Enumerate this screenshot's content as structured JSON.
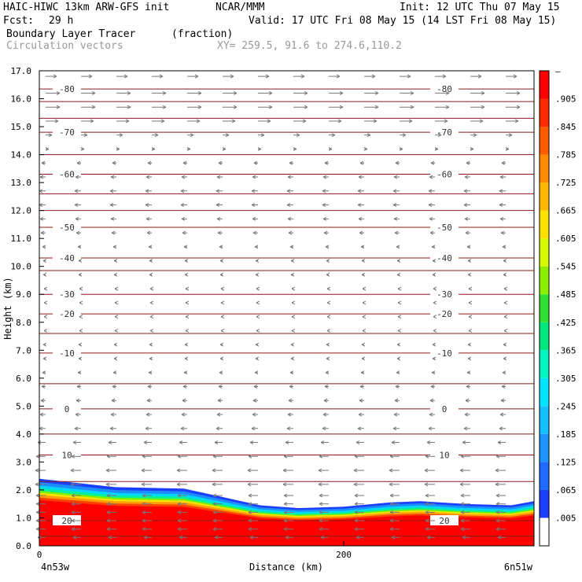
{
  "header": {
    "model": "HAIC-HIWC 13km ARW-GFS init",
    "org": "NCAR/MMM",
    "init": "Init: 12 UTC Thu 07 May 15",
    "fcst_label": "Fcst:",
    "fcst_value": "29 h",
    "valid": "Valid: 17 UTC Fri 08 May 15 (14 LST Fri 08 May 15)",
    "field": "Boundary Layer Tracer",
    "field_units": "(fraction)",
    "vectors": "Circulation vectors",
    "xy": "XY= 259.5, 91.6 to 274.6,110.2"
  },
  "chart_data": {
    "type": "heatmap",
    "ylabel": "Height (km)",
    "xlabel": "Distance (km)",
    "ylim": [
      0,
      17
    ],
    "xlim": [
      0,
      325
    ],
    "yticks": [
      "0.0",
      "1.0",
      "2.0",
      "3.0",
      "4.0",
      "5.0",
      "6.0",
      "7.0",
      "8.0",
      "9.0",
      "10.0",
      "11.0",
      "12.0",
      "13.0",
      "14.0",
      "15.0",
      "16.0",
      "17.0"
    ],
    "xticks": [
      {
        "value": 0,
        "label": "0"
      },
      {
        "value": 200,
        "label": "200"
      }
    ],
    "endpoints": {
      "left": "4n53w",
      "right": "6n51w"
    },
    "boundary_layer_top_km": [
      [
        0,
        2.4
      ],
      [
        50,
        2.1
      ],
      [
        95,
        2.05
      ],
      [
        120,
        1.75
      ],
      [
        145,
        1.45
      ],
      [
        170,
        1.35
      ],
      [
        200,
        1.4
      ],
      [
        230,
        1.55
      ],
      [
        250,
        1.6
      ],
      [
        280,
        1.5
      ],
      [
        310,
        1.45
      ],
      [
        325,
        1.6
      ]
    ],
    "isotherms": [
      {
        "label": "-80",
        "km": 16.35
      },
      {
        "km": 15.9
      },
      {
        "km": 15.3
      },
      {
        "label": "-70",
        "km": 14.8
      },
      {
        "km": 14.0
      },
      {
        "label": "-60",
        "km": 13.3
      },
      {
        "km": 12.6
      },
      {
        "km": 12.0
      },
      {
        "label": "-50",
        "km": 11.4
      },
      {
        "label": "-40",
        "km": 10.3
      },
      {
        "km": 9.85
      },
      {
        "label": "-30",
        "km": 9.0
      },
      {
        "label": "-20",
        "km": 8.3
      },
      {
        "km": 7.6
      },
      {
        "label": "-10",
        "km": 6.9
      },
      {
        "km": 5.8
      },
      {
        "label": "0",
        "km": 4.9
      },
      {
        "km": 4.0
      },
      {
        "label": "10",
        "km": 3.25
      },
      {
        "km": 2.3
      },
      {
        "label": "20",
        "km": 0.9
      },
      {
        "km": 0.35
      }
    ],
    "colorbar": {
      "labels": [
        ".005",
        ".065",
        ".125",
        ".185",
        ".245",
        ".305",
        ".365",
        ".425",
        ".485",
        ".545",
        ".605",
        ".665",
        ".725",
        ".785",
        ".845",
        ".905"
      ],
      "top_label": "–",
      "colors": [
        "#ffffff",
        "#1c3fff",
        "#1d6bff",
        "#1b96ff",
        "#14c0ff",
        "#00e5ff",
        "#00f5c0",
        "#00e77d",
        "#30e030",
        "#8cf000",
        "#d6f800",
        "#ffe100",
        "#ffb800",
        "#ff8a00",
        "#ff5a00",
        "#ff2a00",
        "#ff0000"
      ]
    },
    "wind_rows": [
      {
        "km": 16.8,
        "dir": 1,
        "len": 14
      },
      {
        "km": 16.2,
        "dir": 1,
        "len": 18
      },
      {
        "km": 15.7,
        "dir": 1,
        "len": 18
      },
      {
        "km": 15.2,
        "dir": 1,
        "len": 16
      },
      {
        "km": 14.7,
        "dir": 1,
        "len": 8
      },
      {
        "km": 14.2,
        "dir": 1,
        "len": 4
      },
      {
        "km": 13.7,
        "dir": -1,
        "len": 5
      },
      {
        "km": 13.2,
        "dir": -1,
        "len": 7
      },
      {
        "km": 12.7,
        "dir": -1,
        "len": 8
      },
      {
        "km": 12.2,
        "dir": -1,
        "len": 8
      },
      {
        "km": 11.7,
        "dir": -1,
        "len": 7
      },
      {
        "km": 11.2,
        "dir": -1,
        "len": 6
      },
      {
        "km": 10.7,
        "dir": -1,
        "len": 4
      },
      {
        "km": 10.2,
        "dir": -1,
        "len": 3
      },
      {
        "km": 9.7,
        "dir": -1,
        "len": 3
      },
      {
        "km": 9.2,
        "dir": -1,
        "len": 2
      },
      {
        "km": 8.7,
        "dir": -1,
        "len": 2
      },
      {
        "km": 8.2,
        "dir": -1,
        "len": 2
      },
      {
        "km": 7.7,
        "dir": -1,
        "len": 2
      },
      {
        "km": 7.2,
        "dir": -1,
        "len": 3
      },
      {
        "km": 6.7,
        "dir": -1,
        "len": 3
      },
      {
        "km": 6.2,
        "dir": -1,
        "len": 4
      },
      {
        "km": 5.7,
        "dir": -1,
        "len": 5
      },
      {
        "km": 5.2,
        "dir": -1,
        "len": 6
      },
      {
        "km": 4.7,
        "dir": -1,
        "len": 7
      },
      {
        "km": 4.2,
        "dir": -1,
        "len": 8
      },
      {
        "km": 3.7,
        "dir": -1,
        "len": 10
      },
      {
        "km": 3.2,
        "dir": -1,
        "len": 12
      },
      {
        "km": 2.7,
        "dir": -1,
        "len": 13
      },
      {
        "km": 2.2,
        "dir": -1,
        "len": 13
      },
      {
        "km": 1.8,
        "dir": -1,
        "len": 12
      },
      {
        "km": 1.5,
        "dir": -1,
        "len": 12
      },
      {
        "km": 1.2,
        "dir": -1,
        "len": 12
      },
      {
        "km": 0.9,
        "dir": -1,
        "len": 12
      },
      {
        "km": 0.6,
        "dir": -1,
        "len": 12
      },
      {
        "km": 0.3,
        "dir": -1,
        "len": 10
      }
    ]
  }
}
